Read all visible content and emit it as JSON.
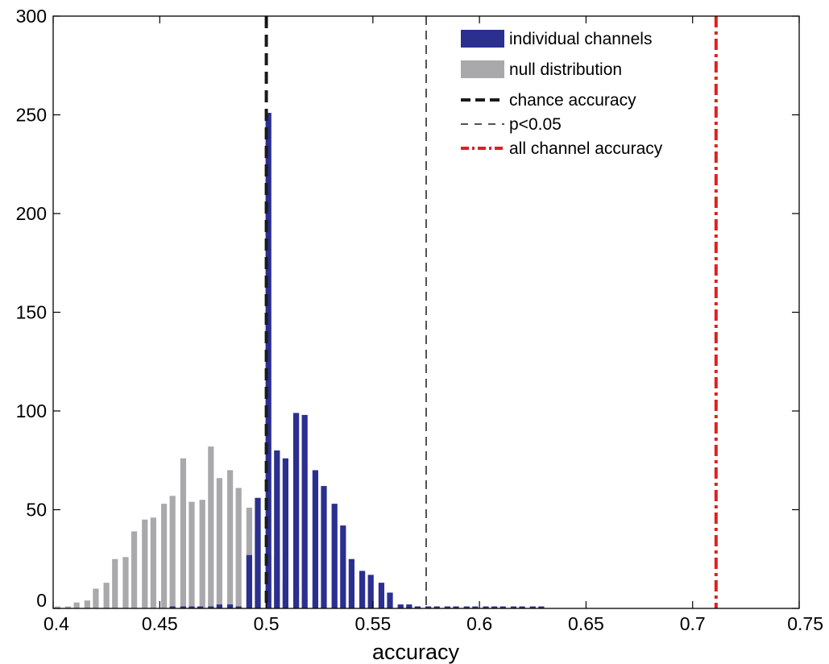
{
  "chart_data": {
    "type": "bar",
    "xlabel": "accuracy",
    "ylabel": "",
    "xlim": [
      0.4,
      0.75
    ],
    "ylim": [
      0,
      300
    ],
    "bin_width": 0.0044,
    "xticks": [
      "0.4",
      "0.45",
      "0.5",
      "0.55",
      "0.6",
      "0.65",
      "0.7",
      "0.75"
    ],
    "yticks": [
      "0",
      "50",
      "100",
      "150",
      "200",
      "250",
      "300"
    ],
    "legend_position": "top-right",
    "colors": {
      "individual": "#2b2f8f",
      "null": "#a9a9ac",
      "chance": "#1a1a1a",
      "p05": "#1a1a1a",
      "all": "#e02020"
    },
    "series": [
      {
        "name": "individual channels",
        "x": [
          0.456,
          0.461,
          0.465,
          0.469,
          0.474,
          0.478,
          0.483,
          0.487,
          0.492,
          0.496,
          0.501,
          0.505,
          0.509,
          0.514,
          0.518,
          0.523,
          0.527,
          0.532,
          0.536,
          0.54,
          0.545,
          0.549,
          0.554,
          0.558,
          0.563,
          0.567,
          0.571,
          0.576,
          0.58,
          0.585,
          0.589,
          0.594,
          0.598,
          0.603,
          0.607,
          0.611,
          0.616,
          0.62,
          0.625,
          0.629
        ],
        "values": [
          1,
          1,
          1,
          1,
          1,
          2,
          2,
          1,
          27,
          56,
          251,
          80,
          76,
          99,
          98,
          70,
          62,
          53,
          42,
          25,
          19,
          17,
          13,
          8,
          2,
          2,
          1,
          1,
          1,
          1,
          1,
          1,
          1,
          1,
          1,
          1,
          1,
          1,
          1,
          1
        ]
      },
      {
        "name": "null distribution",
        "x": [
          0.402,
          0.407,
          0.411,
          0.416,
          0.42,
          0.425,
          0.429,
          0.434,
          0.438,
          0.443,
          0.447,
          0.452,
          0.456,
          0.461,
          0.465,
          0.47,
          0.474,
          0.478,
          0.483,
          0.487,
          0.492,
          0.496,
          0.501,
          0.505,
          0.509,
          0.514,
          0.518,
          0.523,
          0.527,
          0.532,
          0.536,
          0.54,
          0.545,
          0.549,
          0.554,
          0.558,
          0.563,
          0.567,
          0.571,
          0.576,
          0.58,
          0.585,
          0.589
        ],
        "values": [
          1,
          1,
          3,
          4,
          10,
          13,
          25,
          26,
          39,
          45,
          46,
          53,
          57,
          76,
          54,
          55,
          82,
          66,
          70,
          61,
          51,
          39,
          27,
          26,
          14,
          11,
          6,
          4,
          2,
          1,
          1,
          1,
          1,
          1,
          1,
          1,
          1,
          1,
          1,
          1,
          1,
          1,
          1
        ]
      }
    ],
    "reference_lines": [
      {
        "name": "chance accuracy",
        "x": 0.5,
        "style": "thick-dashed"
      },
      {
        "name": "p<0.05",
        "x": 0.575,
        "style": "thin-dashed"
      },
      {
        "name": "all channel accuracy",
        "x": 0.711,
        "style": "dash-dot"
      }
    ],
    "legend": [
      "individual channels",
      "null distribution",
      "chance accuracy",
      "p<0.05",
      "all channel accuracy"
    ]
  }
}
